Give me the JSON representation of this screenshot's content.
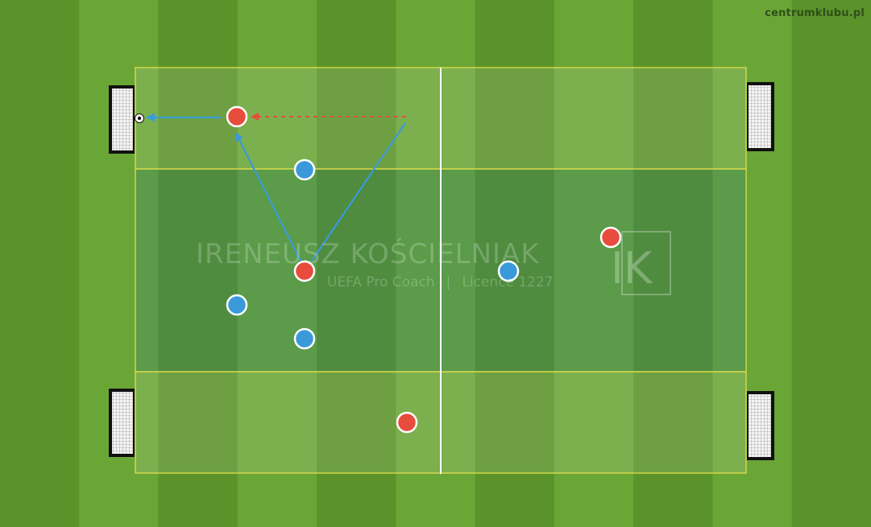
{
  "site_label": "centrumklubu.pl",
  "watermark": {
    "name": "IRENEUSZ KOŚCIELNIAK",
    "role": "UEFA Pro Coach",
    "separator": "|",
    "licence": "Licence 1227",
    "logo_letters": "IK"
  },
  "colors": {
    "grass_light": "#6aa636",
    "grass_dark": "#5a9329",
    "zone_line": "#e8e24a",
    "halfway_line": "#ffffff",
    "team_red": "#e84c3d",
    "team_blue": "#3a9ad9",
    "pass_arrow": "#3a9ad9",
    "run_arrow": "#e84c3d"
  },
  "teams": [
    "red",
    "blue"
  ]
}
